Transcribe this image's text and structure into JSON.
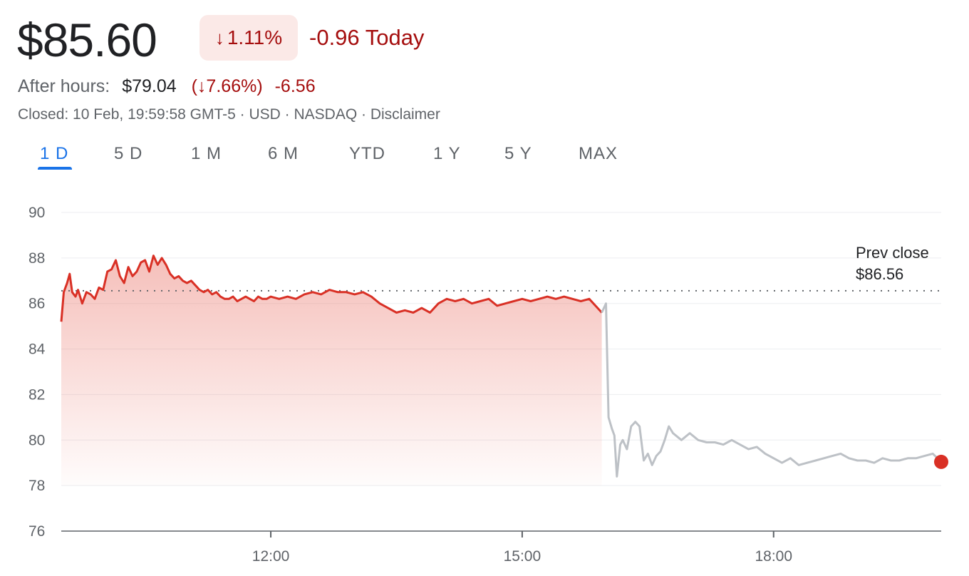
{
  "quote": {
    "price": "$85.60",
    "change_pct": "1.11%",
    "change_arrow": "↓",
    "change_today": "-0.96 Today",
    "after_hours_label": "After hours:",
    "after_hours_price": "$79.04",
    "after_hours_pct": "(↓7.66%)",
    "after_hours_change": "-6.56",
    "status_line": "Closed: 10 Feb, 19:59:58 GMT-5 · USD · NASDAQ · ",
    "disclaimer": "Disclaimer"
  },
  "tabs": [
    {
      "label": "1 D",
      "active": true
    },
    {
      "label": "5 D",
      "active": false
    },
    {
      "label": "1 M",
      "active": false
    },
    {
      "label": "6 M",
      "active": false
    },
    {
      "label": "YTD",
      "active": false
    },
    {
      "label": "1 Y",
      "active": false
    },
    {
      "label": "5 Y",
      "active": false
    },
    {
      "label": "MAX",
      "active": false
    }
  ],
  "colors": {
    "down": "#d93025",
    "down_text": "#a50e0e",
    "after_hours": "#bdc1c6",
    "accent": "#1a73e8"
  },
  "chart_data": {
    "type": "line",
    "title": "",
    "xlabel": "",
    "ylabel": "",
    "ylim": [
      76,
      90
    ],
    "yticks": [
      76,
      78,
      80,
      82,
      84,
      86,
      88,
      90
    ],
    "xlim": [
      9.5,
      20.0
    ],
    "xticks": [
      {
        "value": 12,
        "label": "12:00"
      },
      {
        "value": 15,
        "label": "15:00"
      },
      {
        "value": 18,
        "label": "18:00"
      }
    ],
    "grid": true,
    "prev_close": {
      "label": "Prev close",
      "value_label": "$86.56",
      "value": 86.56
    },
    "series": [
      {
        "segment": "regular",
        "x": [
          9.5,
          9.53,
          9.57,
          9.6,
          9.63,
          9.67,
          9.7,
          9.75,
          9.8,
          9.85,
          9.9,
          9.95,
          10.0,
          10.05,
          10.1,
          10.15,
          10.2,
          10.25,
          10.3,
          10.35,
          10.4,
          10.45,
          10.5,
          10.55,
          10.6,
          10.65,
          10.7,
          10.75,
          10.8,
          10.85,
          10.9,
          10.95,
          11.0,
          11.05,
          11.1,
          11.15,
          11.2,
          11.25,
          11.3,
          11.35,
          11.4,
          11.45,
          11.5,
          11.55,
          11.6,
          11.65,
          11.7,
          11.75,
          11.8,
          11.85,
          11.9,
          11.95,
          12.0,
          12.1,
          12.2,
          12.3,
          12.4,
          12.5,
          12.6,
          12.7,
          12.8,
          12.9,
          13.0,
          13.1,
          13.2,
          13.3,
          13.4,
          13.5,
          13.6,
          13.7,
          13.8,
          13.9,
          14.0,
          14.1,
          14.2,
          14.3,
          14.4,
          14.5,
          14.6,
          14.7,
          14.8,
          14.9,
          15.0,
          15.1,
          15.2,
          15.3,
          15.4,
          15.5,
          15.6,
          15.7,
          15.8,
          15.9,
          15.95
        ],
        "values": [
          85.2,
          86.5,
          86.9,
          87.3,
          86.5,
          86.3,
          86.6,
          86.0,
          86.5,
          86.4,
          86.2,
          86.7,
          86.6,
          87.4,
          87.5,
          87.9,
          87.2,
          86.9,
          87.6,
          87.2,
          87.4,
          87.8,
          87.9,
          87.4,
          88.1,
          87.7,
          88.0,
          87.7,
          87.3,
          87.1,
          87.2,
          87.0,
          86.9,
          87.0,
          86.8,
          86.6,
          86.5,
          86.6,
          86.4,
          86.5,
          86.3,
          86.2,
          86.2,
          86.3,
          86.1,
          86.2,
          86.3,
          86.2,
          86.1,
          86.3,
          86.2,
          86.2,
          86.3,
          86.2,
          86.3,
          86.2,
          86.4,
          86.5,
          86.4,
          86.6,
          86.5,
          86.5,
          86.4,
          86.5,
          86.3,
          86.0,
          85.8,
          85.6,
          85.7,
          85.6,
          85.8,
          85.6,
          86.0,
          86.2,
          86.1,
          86.2,
          86.0,
          86.1,
          86.2,
          85.9,
          86.0,
          86.1,
          86.2,
          86.1,
          86.2,
          86.3,
          86.2,
          86.3,
          86.2,
          86.1,
          86.2,
          85.8,
          85.6
        ]
      },
      {
        "segment": "after_hours",
        "x": [
          15.95,
          16.0,
          16.03,
          16.07,
          16.1,
          16.13,
          16.17,
          16.2,
          16.25,
          16.3,
          16.35,
          16.4,
          16.45,
          16.5,
          16.55,
          16.6,
          16.65,
          16.7,
          16.75,
          16.8,
          16.9,
          17.0,
          17.1,
          17.2,
          17.3,
          17.4,
          17.5,
          17.6,
          17.7,
          17.8,
          17.9,
          18.0,
          18.1,
          18.2,
          18.3,
          18.4,
          18.5,
          18.6,
          18.7,
          18.8,
          18.9,
          19.0,
          19.1,
          19.2,
          19.3,
          19.4,
          19.5,
          19.6,
          19.7,
          19.8,
          19.9,
          20.0
        ],
        "values": [
          85.6,
          86.0,
          81.0,
          80.5,
          80.2,
          78.4,
          79.8,
          80.0,
          79.6,
          80.6,
          80.8,
          80.6,
          79.1,
          79.4,
          78.9,
          79.3,
          79.5,
          80.0,
          80.6,
          80.3,
          80.0,
          80.3,
          80.0,
          79.9,
          79.9,
          79.8,
          80.0,
          79.8,
          79.6,
          79.7,
          79.4,
          79.2,
          79.0,
          79.2,
          78.9,
          79.0,
          79.1,
          79.2,
          79.3,
          79.4,
          79.2,
          79.1,
          79.1,
          79.0,
          79.2,
          79.1,
          79.1,
          79.2,
          79.2,
          79.3,
          79.4,
          79.04
        ]
      }
    ]
  }
}
